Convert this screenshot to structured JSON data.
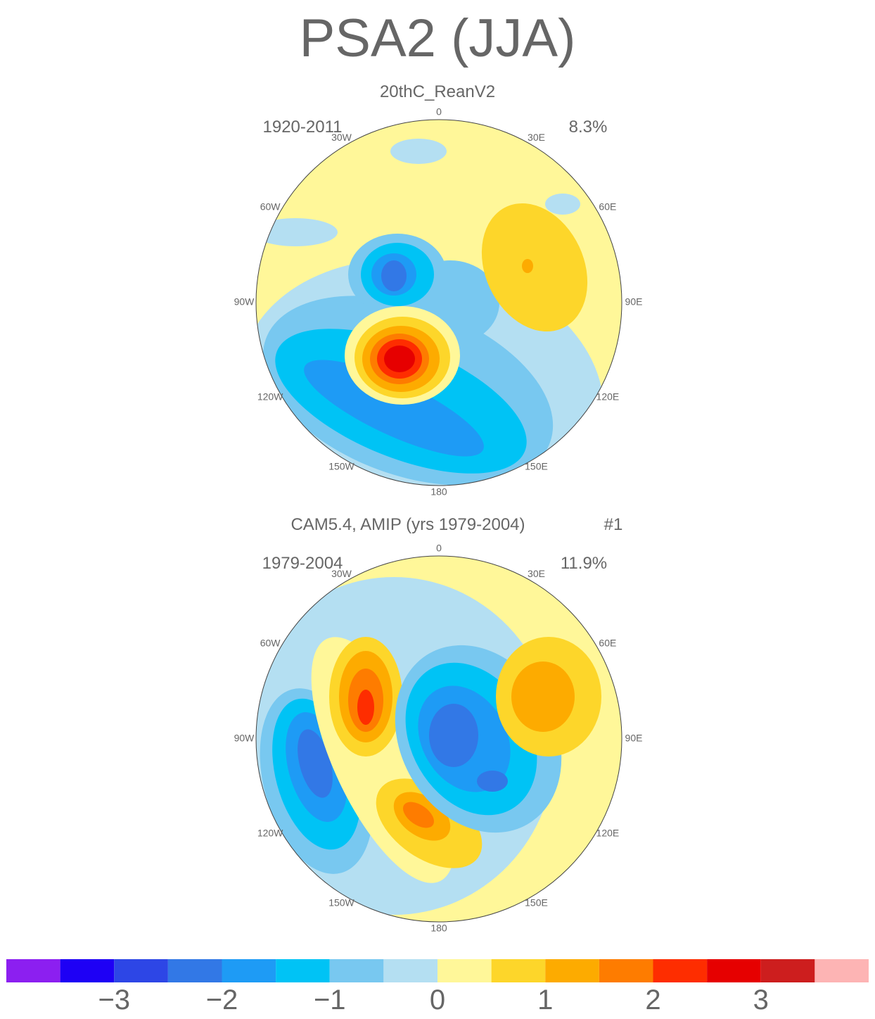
{
  "title": "PSA2 (JJA)",
  "lon_labels": [
    "0",
    "30E",
    "60E",
    "90E",
    "120E",
    "150E",
    "180",
    "150W",
    "120W",
    "90W",
    "60W",
    "30W"
  ],
  "panels": [
    {
      "subtitle": "20thC_ReanV2",
      "period": "1920-2011",
      "variance": "8.3%"
    },
    {
      "subtitle": "CAM5.4, AMIP (yrs 1979-2004)",
      "run": "#1",
      "period": "1979-2004",
      "variance": "11.9%"
    }
  ],
  "colorbar": {
    "range": [
      -4,
      4
    ],
    "colors": [
      "#8c1ff0",
      "#1e00f5",
      "#2d46e6",
      "#3278e6",
      "#1e9bf5",
      "#00c3f5",
      "#78c8f0",
      "#b4dff2",
      "#fff799",
      "#fdd62a",
      "#fdab00",
      "#fe7c00",
      "#fe2d00",
      "#e60000",
      "#cd1e1e",
      "#fdb4b4"
    ],
    "ticks": [
      {
        "value": -3,
        "label": "−3"
      },
      {
        "value": -2,
        "label": "−2"
      },
      {
        "value": -1,
        "label": "−1"
      },
      0,
      1,
      2,
      3
    ]
  }
}
